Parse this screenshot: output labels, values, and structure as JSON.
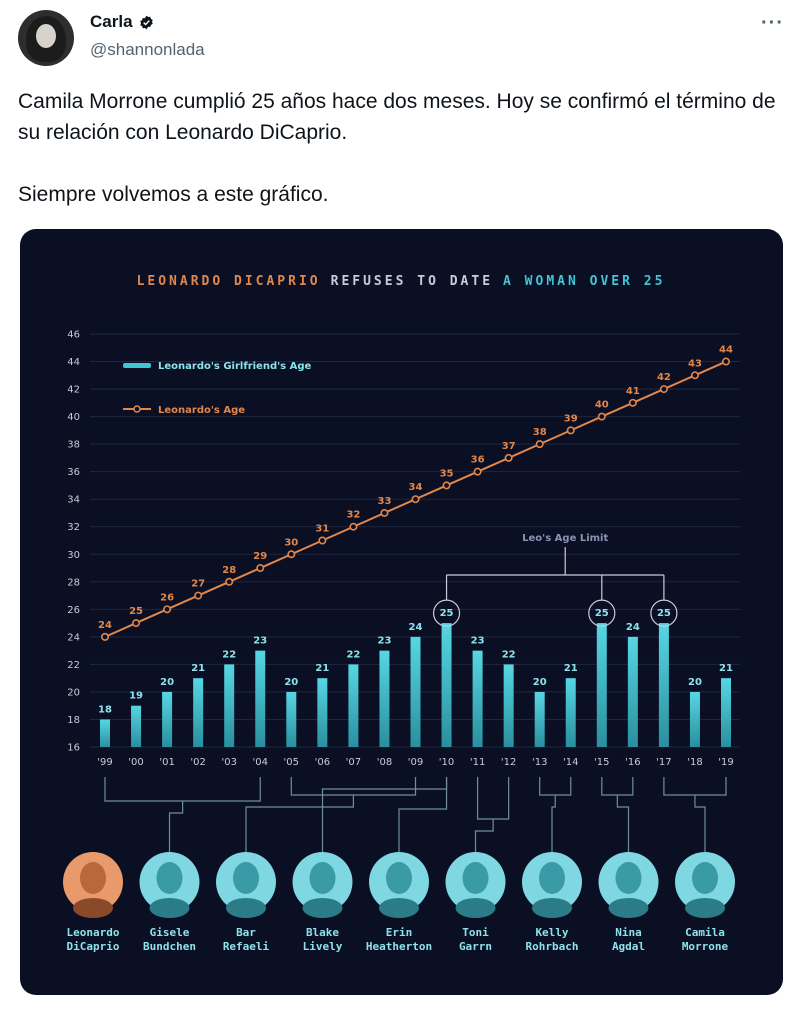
{
  "tweet": {
    "author_name": "Carla",
    "author_handle": "@shannonlada",
    "more_label": "···",
    "text_line1": "Camila Morrone cumplió 25 años hace dos meses. Hoy se confirmó el término de su relación con Leonardo DiCaprio.",
    "text_line2": "Siempre volvemos a este gráfico."
  },
  "colors": {
    "orange": "#e2864a",
    "cyan": "#3fc5d3",
    "background": "#0b0f24",
    "grid": "#1f2740"
  },
  "chart_data": {
    "type": "bar",
    "title_parts": [
      "LEONARDO DICAPRIO",
      "REFUSES TO DATE",
      "A WOMAN OVER 25"
    ],
    "ylim": [
      16,
      46
    ],
    "yticks": [
      16,
      18,
      20,
      22,
      24,
      26,
      28,
      30,
      32,
      34,
      36,
      38,
      40,
      42,
      44,
      46
    ],
    "categories": [
      "'99",
      "'00",
      "'01",
      "'02",
      "'03",
      "'04",
      "'05",
      "'06",
      "'07",
      "'08",
      "'09",
      "'10",
      "'11",
      "'12",
      "'13",
      "'14",
      "'15",
      "'16",
      "'17",
      "'18",
      "'19"
    ],
    "series": [
      {
        "name": "Leonardo's Girlfriend's Age",
        "type": "bar",
        "values": [
          18,
          19,
          20,
          21,
          22,
          23,
          20,
          21,
          22,
          23,
          24,
          25,
          23,
          22,
          20,
          21,
          25,
          24,
          25,
          20,
          21
        ]
      },
      {
        "name": "Leonardo's Age",
        "type": "line",
        "values": [
          24,
          25,
          26,
          27,
          28,
          29,
          30,
          31,
          32,
          33,
          34,
          35,
          36,
          37,
          38,
          39,
          40,
          41,
          42,
          43,
          44
        ]
      }
    ],
    "highlighted_indices": [
      11,
      16,
      18
    ],
    "annotation": "Leo's Age Limit",
    "people": [
      {
        "name_line1": "Leonardo",
        "name_line2": "DiCaprio",
        "is_leo": true
      },
      {
        "name_line1": "Gisele",
        "name_line2": "Bundchen",
        "bars": [
          0,
          5
        ]
      },
      {
        "name_line1": "Bar",
        "name_line2": "Refaeli",
        "bars": [
          6,
          10
        ]
      },
      {
        "name_line1": "Blake",
        "name_line2": "Lively",
        "bars": [
          11,
          11
        ]
      },
      {
        "name_line1": "Erin",
        "name_line2": "Heatherton",
        "bars": [
          11,
          11
        ]
      },
      {
        "name_line1": "Toni",
        "name_line2": "Garrn",
        "bars": [
          12,
          13
        ]
      },
      {
        "name_line1": "Kelly",
        "name_line2": "Rohrbach",
        "bars": [
          14,
          15
        ]
      },
      {
        "name_line1": "Nina",
        "name_line2": "Agdal",
        "bars": [
          16,
          17
        ]
      },
      {
        "name_line1": "Camila",
        "name_line2": "Morrone",
        "bars": [
          18,
          20
        ]
      }
    ]
  }
}
